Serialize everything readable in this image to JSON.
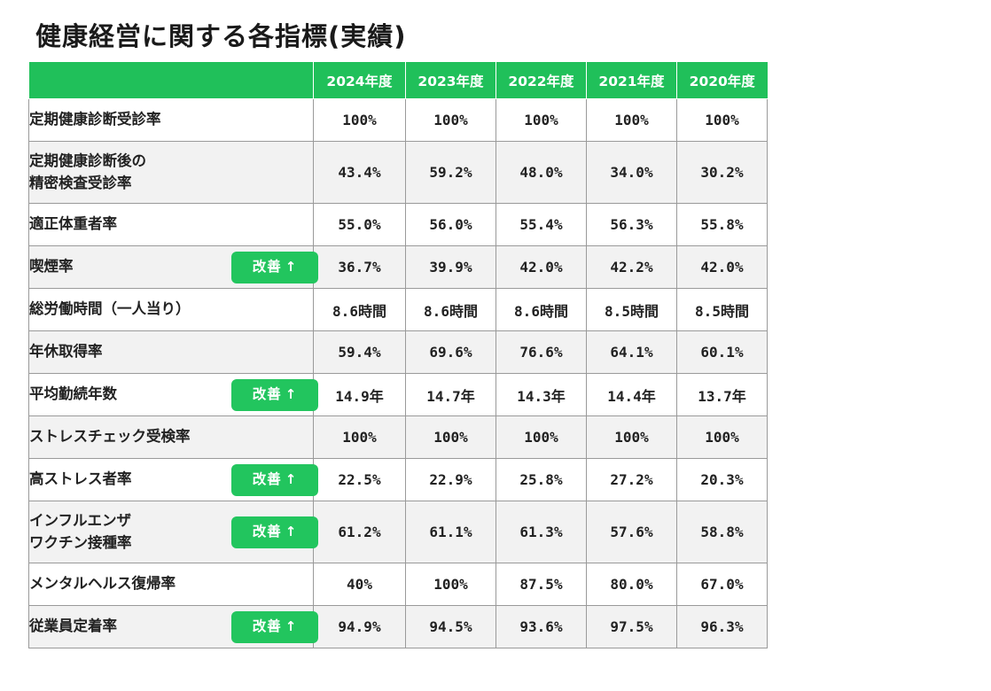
{
  "title": "健康経営に関する各指標(実績)",
  "columns": [
    "2024年度",
    "2023年度",
    "2022年度",
    "2021年度",
    "2020年度"
  ],
  "badge_text": "改善",
  "badge_arrow": "↑",
  "colors": {
    "header_green": "#20c05a",
    "badge_green": "#22c55e"
  },
  "rows": [
    {
      "label": "定期健康診断受診率",
      "lines": 1,
      "improved": false,
      "values": [
        "100%",
        "100%",
        "100%",
        "100%",
        "100%"
      ]
    },
    {
      "label": "定期健康診断後の\n精密検査受診率",
      "lines": 2,
      "improved": false,
      "values": [
        "43.4%",
        "59.2%",
        "48.0%",
        "34.0%",
        "30.2%"
      ]
    },
    {
      "label": "適正体重者率",
      "lines": 1,
      "improved": false,
      "values": [
        "55.0%",
        "56.0%",
        "55.4%",
        "56.3%",
        "55.8%"
      ]
    },
    {
      "label": "喫煙率",
      "lines": 1,
      "improved": true,
      "values": [
        "36.7%",
        "39.9%",
        "42.0%",
        "42.2%",
        "42.0%"
      ]
    },
    {
      "label": "総労働時間（一人当り）",
      "lines": 1,
      "improved": false,
      "values": [
        "8.6時間",
        "8.6時間",
        "8.6時間",
        "8.5時間",
        "8.5時間"
      ]
    },
    {
      "label": "年休取得率",
      "lines": 1,
      "improved": false,
      "values": [
        "59.4%",
        "69.6%",
        "76.6%",
        "64.1%",
        "60.1%"
      ]
    },
    {
      "label": "平均勤続年数",
      "lines": 1,
      "improved": true,
      "values": [
        "14.9年",
        "14.7年",
        "14.3年",
        "14.4年",
        "13.7年"
      ]
    },
    {
      "label": "ストレスチェック受検率",
      "lines": 1,
      "improved": false,
      "values": [
        "100%",
        "100%",
        "100%",
        "100%",
        "100%"
      ]
    },
    {
      "label": "高ストレス者率",
      "lines": 1,
      "improved": true,
      "values": [
        "22.5%",
        "22.9%",
        "25.8%",
        "27.2%",
        "20.3%"
      ]
    },
    {
      "label": "インフルエンザ\nワクチン接種率",
      "lines": 2,
      "improved": true,
      "values": [
        "61.2%",
        "61.1%",
        "61.3%",
        "57.6%",
        "58.8%"
      ]
    },
    {
      "label": "メンタルヘルス復帰率",
      "lines": 1,
      "improved": false,
      "values": [
        "40%",
        "100%",
        "87.5%",
        "80.0%",
        "67.0%"
      ]
    },
    {
      "label": "従業員定着率",
      "lines": 1,
      "improved": true,
      "values": [
        "94.9%",
        "94.5%",
        "93.6%",
        "97.5%",
        "96.3%"
      ]
    }
  ]
}
